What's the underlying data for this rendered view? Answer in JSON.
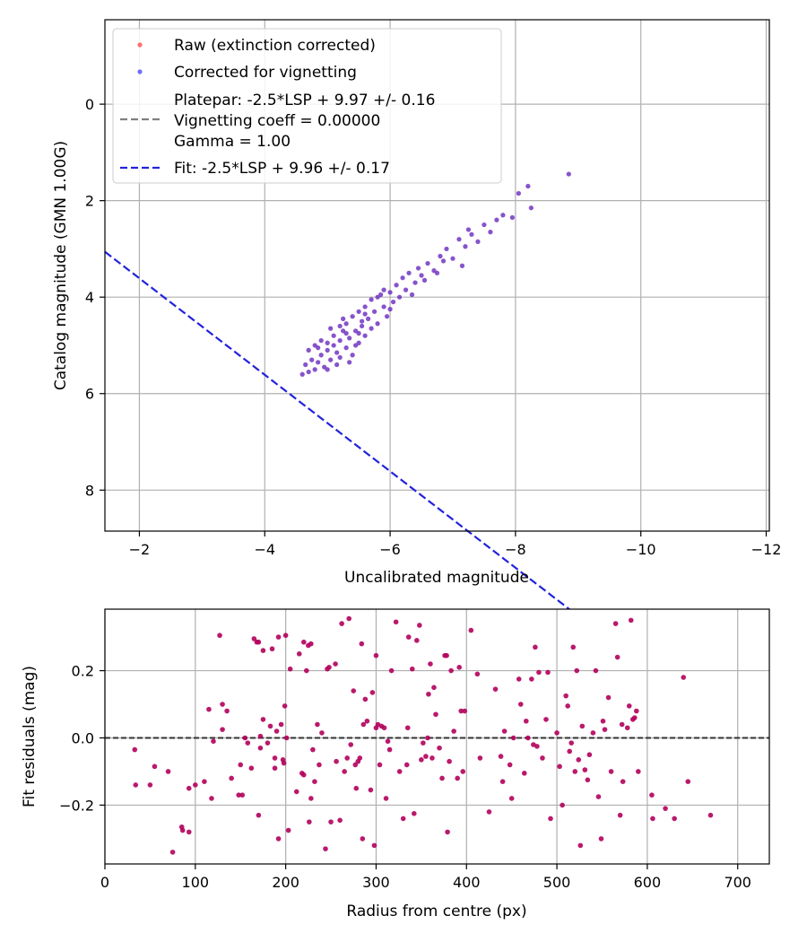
{
  "chart_data": [
    {
      "type": "scatter",
      "title": "",
      "xlabel": "Uncalibrated magnitude",
      "ylabel": "Catalog magnitude (GMN 1.00G)",
      "xlim": [
        -1.45,
        -12.05
      ],
      "ylim": [
        -1.75,
        8.85
      ],
      "xticks": [
        -2,
        -4,
        -6,
        -8,
        -10,
        -12
      ],
      "xtick_labels": [
        "−2",
        "−4",
        "−6",
        "−8",
        "−10",
        "−12"
      ],
      "yticks": [
        0,
        2,
        4,
        6,
        8
      ],
      "ytick_labels": [
        "0",
        "2",
        "4",
        "6",
        "8"
      ],
      "grid": true,
      "legend_position": "top-left",
      "legend": {
        "raw": "Raw (extinction corrected)",
        "corrected": "Corrected for vignetting",
        "platepar_line1": "Platepar: -2.5*LSP + 9.97 +/- 0.16",
        "platepar_line2": "Vignetting coeff = 0.00000",
        "platepar_line3": "Gamma = 1.00",
        "fit": "Fit: -2.5*LSP + 9.96 +/- 0.17"
      },
      "colors": {
        "raw": "#ff3333",
        "corrected": "#3333ff",
        "platepar": "#808080",
        "fit": "#2222dd"
      },
      "fit_line": {
        "slope": -1.0,
        "intercept": 1.61,
        "x_range": [
          -1.45,
          -11.7
        ]
      },
      "platepar_line": {
        "slope": -1.0,
        "intercept": 1.6,
        "visible": false
      },
      "points": [
        [
          -4.6,
          5.6
        ],
        [
          -4.7,
          5.55
        ],
        [
          -4.65,
          5.4
        ],
        [
          -4.8,
          5.5
        ],
        [
          -4.75,
          5.3
        ],
        [
          -4.85,
          5.35
        ],
        [
          -4.7,
          5.1
        ],
        [
          -4.8,
          5.0
        ],
        [
          -4.9,
          5.2
        ],
        [
          -4.95,
          5.45
        ],
        [
          -5.0,
          5.1
        ],
        [
          -5.0,
          4.95
        ],
        [
          -5.05,
          5.3
        ],
        [
          -5.1,
          5.0
        ],
        [
          -5.1,
          4.8
        ],
        [
          -5.15,
          5.15
        ],
        [
          -5.2,
          4.9
        ],
        [
          -5.2,
          5.25
        ],
        [
          -5.25,
          4.7
        ],
        [
          -5.3,
          5.05
        ],
        [
          -5.3,
          4.55
        ],
        [
          -5.35,
          4.85
        ],
        [
          -5.4,
          5.2
        ],
        [
          -5.4,
          4.4
        ],
        [
          -5.45,
          4.7
        ],
        [
          -5.5,
          4.95
        ],
        [
          -5.5,
          4.3
        ],
        [
          -5.55,
          4.6
        ],
        [
          -5.6,
          4.8
        ],
        [
          -5.6,
          4.2
        ],
        [
          -5.65,
          4.45
        ],
        [
          -5.7,
          4.05
        ],
        [
          -5.75,
          4.3
        ],
        [
          -5.8,
          4.55
        ],
        [
          -5.85,
          3.95
        ],
        [
          -5.9,
          4.2
        ],
        [
          -5.95,
          4.4
        ],
        [
          -6.0,
          3.9
        ],
        [
          -6.05,
          4.1
        ],
        [
          -6.1,
          3.75
        ],
        [
          -6.15,
          4.0
        ],
        [
          -6.2,
          3.6
        ],
        [
          -6.25,
          3.85
        ],
        [
          -6.3,
          3.5
        ],
        [
          -6.4,
          3.7
        ],
        [
          -6.45,
          3.4
        ],
        [
          -6.5,
          3.55
        ],
        [
          -6.6,
          3.3
        ],
        [
          -6.7,
          3.45
        ],
        [
          -6.8,
          3.15
        ],
        [
          -6.9,
          3.0
        ],
        [
          -7.0,
          3.2
        ],
        [
          -7.1,
          2.8
        ],
        [
          -7.2,
          2.95
        ],
        [
          -7.3,
          2.7
        ],
        [
          -7.4,
          2.85
        ],
        [
          -7.5,
          2.5
        ],
        [
          -7.6,
          2.65
        ],
        [
          -7.7,
          2.4
        ],
        [
          -7.8,
          2.3
        ],
        [
          -7.95,
          2.35
        ],
        [
          -8.05,
          1.85
        ],
        [
          -8.2,
          1.7
        ],
        [
          -8.25,
          2.15
        ],
        [
          -8.85,
          1.45
        ],
        [
          -5.0,
          5.5
        ],
        [
          -5.15,
          5.4
        ],
        [
          -5.3,
          4.75
        ],
        [
          -5.45,
          5.0
        ],
        [
          -5.55,
          4.5
        ],
        [
          -5.7,
          4.65
        ],
        [
          -5.8,
          4.0
        ],
        [
          -5.25,
          4.45
        ],
        [
          -5.05,
          4.65
        ],
        [
          -4.9,
          4.9
        ],
        [
          -5.35,
          5.35
        ],
        [
          -5.6,
          4.35
        ],
        [
          -6.35,
          3.95
        ],
        [
          -6.55,
          3.65
        ],
        [
          -7.15,
          3.35
        ],
        [
          -7.25,
          2.6
        ],
        [
          -6.85,
          3.25
        ],
        [
          -5.9,
          3.85
        ],
        [
          -4.85,
          5.05
        ],
        [
          -5.2,
          4.6
        ],
        [
          -5.5,
          4.75
        ],
        [
          -6.0,
          4.25
        ],
        [
          -6.75,
          3.5
        ]
      ]
    },
    {
      "type": "scatter",
      "title": "",
      "xlabel": "Radius from centre (px)",
      "ylabel": "Fit residuals (mag)",
      "xlim": [
        0,
        735
      ],
      "ylim": [
        -0.375,
        0.383
      ],
      "xticks": [
        0,
        100,
        200,
        300,
        400,
        500,
        600,
        700
      ],
      "xtick_labels": [
        "0",
        "100",
        "200",
        "300",
        "400",
        "500",
        "600",
        "700"
      ],
      "yticks": [
        -0.2,
        0.0,
        0.2
      ],
      "ytick_labels": [
        "−0.2",
        "0.0",
        "0.2"
      ],
      "grid": true,
      "reference_line": 0.0,
      "colors": {
        "points": "#b3005c",
        "reference": "#333333"
      },
      "points": [
        [
          33,
          -0.035
        ],
        [
          34,
          -0.14
        ],
        [
          50,
          -0.14
        ],
        [
          55,
          -0.085
        ],
        [
          70,
          -0.1
        ],
        [
          75,
          -0.34
        ],
        [
          85,
          -0.265
        ],
        [
          86,
          -0.275
        ],
        [
          93,
          -0.28
        ],
        [
          93,
          -0.15
        ],
        [
          100,
          -0.14
        ],
        [
          110,
          -0.13
        ],
        [
          115,
          0.085
        ],
        [
          118,
          -0.18
        ],
        [
          120,
          -0.01
        ],
        [
          127,
          0.305
        ],
        [
          130,
          0.1
        ],
        [
          130,
          0.025
        ],
        [
          135,
          0.08
        ],
        [
          140,
          -0.12
        ],
        [
          148,
          -0.17
        ],
        [
          150,
          -0.08
        ],
        [
          152,
          -0.17
        ],
        [
          155,
          0.0
        ],
        [
          158,
          -0.015
        ],
        [
          162,
          -0.09
        ],
        [
          165,
          0.295
        ],
        [
          168,
          0.285
        ],
        [
          170,
          0.285
        ],
        [
          170,
          -0.23
        ],
        [
          172,
          -0.03
        ],
        [
          172,
          0.005
        ],
        [
          175,
          0.26
        ],
        [
          175,
          0.055
        ],
        [
          180,
          -0.015
        ],
        [
          183,
          0.035
        ],
        [
          185,
          0.265
        ],
        [
          188,
          -0.06
        ],
        [
          188,
          -0.09
        ],
        [
          190,
          0.02
        ],
        [
          192,
          0.3
        ],
        [
          192,
          -0.3
        ],
        [
          195,
          0.04
        ],
        [
          197,
          -0.065
        ],
        [
          198,
          -0.075
        ],
        [
          199,
          0.095
        ],
        [
          200,
          0.305
        ],
        [
          201,
          -0.0
        ],
        [
          203,
          -0.275
        ],
        [
          205,
          0.205
        ],
        [
          212,
          -0.16
        ],
        [
          215,
          0.25
        ],
        [
          218,
          -0.105
        ],
        [
          220,
          -0.11
        ],
        [
          220,
          0.285
        ],
        [
          223,
          0.2
        ],
        [
          225,
          0.275
        ],
        [
          226,
          -0.25
        ],
        [
          228,
          -0.18
        ],
        [
          228,
          0.28
        ],
        [
          230,
          -0.035
        ],
        [
          232,
          -0.13
        ],
        [
          235,
          0.04
        ],
        [
          237,
          -0.08
        ],
        [
          240,
          0.015
        ],
        [
          244,
          -0.33
        ],
        [
          246,
          0.205
        ],
        [
          248,
          0.21
        ],
        [
          250,
          -0.25
        ],
        [
          255,
          0.22
        ],
        [
          256,
          -0.07
        ],
        [
          260,
          -0.245
        ],
        [
          262,
          0.34
        ],
        [
          265,
          -0.1
        ],
        [
          268,
          -0.06
        ],
        [
          270,
          0.355
        ],
        [
          272,
          -0.02
        ],
        [
          275,
          0.14
        ],
        [
          277,
          -0.08
        ],
        [
          278,
          -0.15
        ],
        [
          280,
          -0.07
        ],
        [
          282,
          -0.06
        ],
        [
          284,
          0.28
        ],
        [
          285,
          -0.3
        ],
        [
          286,
          0.04
        ],
        [
          288,
          0.115
        ],
        [
          290,
          0.05
        ],
        [
          294,
          -0.155
        ],
        [
          296,
          0.135
        ],
        [
          298,
          -0.32
        ],
        [
          300,
          0.245
        ],
        [
          302,
          0.04
        ],
        [
          304,
          -0.08
        ],
        [
          306,
          0.035
        ],
        [
          309,
          0.03
        ],
        [
          311,
          -0.18
        ],
        [
          313,
          -0.01
        ],
        [
          315,
          -0.035
        ],
        [
          317,
          0.2
        ],
        [
          322,
          0.345
        ],
        [
          326,
          -0.1
        ],
        [
          330,
          -0.24
        ],
        [
          334,
          -0.08
        ],
        [
          335,
          0.03
        ],
        [
          336,
          0.3
        ],
        [
          340,
          0.205
        ],
        [
          342,
          -0.225
        ],
        [
          345,
          0.29
        ],
        [
          348,
          0.335
        ],
        [
          350,
          -0.065
        ],
        [
          352,
          -0.015
        ],
        [
          355,
          -0.055
        ],
        [
          357,
          0.0
        ],
        [
          358,
          0.13
        ],
        [
          360,
          0.22
        ],
        [
          362,
          -0.06
        ],
        [
          364,
          0.15
        ],
        [
          366,
          0.07
        ],
        [
          370,
          -0.03
        ],
        [
          373,
          -0.12
        ],
        [
          376,
          0.245
        ],
        [
          378,
          0.245
        ],
        [
          379,
          -0.28
        ],
        [
          381,
          -0.07
        ],
        [
          383,
          0.2
        ],
        [
          386,
          0.02
        ],
        [
          390,
          -0.12
        ],
        [
          392,
          0.21
        ],
        [
          394,
          0.08
        ],
        [
          396,
          -0.1
        ],
        [
          398,
          0.08
        ],
        [
          405,
          0.32
        ],
        [
          412,
          0.19
        ],
        [
          415,
          -0.06
        ],
        [
          425,
          -0.22
        ],
        [
          432,
          0.145
        ],
        [
          438,
          -0.055
        ],
        [
          440,
          -0.13
        ],
        [
          442,
          0.02
        ],
        [
          448,
          -0.08
        ],
        [
          450,
          -0.18
        ],
        [
          452,
          0.0
        ],
        [
          458,
          0.175
        ],
        [
          460,
          0.1
        ],
        [
          464,
          -0.105
        ],
        [
          466,
          0.05
        ],
        [
          468,
          0.0
        ],
        [
          472,
          0.175
        ],
        [
          474,
          -0.02
        ],
        [
          476,
          0.27
        ],
        [
          478,
          -0.025
        ],
        [
          480,
          0.195
        ],
        [
          484,
          -0.06
        ],
        [
          488,
          0.055
        ],
        [
          490,
          0.195
        ],
        [
          493,
          -0.24
        ],
        [
          500,
          0.015
        ],
        [
          503,
          -0.085
        ],
        [
          506,
          -0.2
        ],
        [
          510,
          0.125
        ],
        [
          512,
          0.095
        ],
        [
          514,
          -0.04
        ],
        [
          516,
          -0.015
        ],
        [
          518,
          0.27
        ],
        [
          520,
          -0.1
        ],
        [
          522,
          0.2
        ],
        [
          524,
          -0.065
        ],
        [
          526,
          -0.32
        ],
        [
          528,
          0.035
        ],
        [
          531,
          -0.095
        ],
        [
          534,
          -0.125
        ],
        [
          536,
          -0.05
        ],
        [
          540,
          0.015
        ],
        [
          543,
          0.2
        ],
        [
          546,
          -0.175
        ],
        [
          549,
          -0.3
        ],
        [
          551,
          0.05
        ],
        [
          553,
          0.025
        ],
        [
          557,
          0.12
        ],
        [
          560,
          -0.1
        ],
        [
          565,
          0.34
        ],
        [
          567,
          0.24
        ],
        [
          570,
          -0.23
        ],
        [
          572,
          0.04
        ],
        [
          573,
          -0.13
        ],
        [
          578,
          0.03
        ],
        [
          580,
          0.095
        ],
        [
          582,
          0.35
        ],
        [
          584,
          0.055
        ],
        [
          586,
          0.06
        ],
        [
          588,
          0.08
        ],
        [
          590,
          -0.1
        ],
        [
          605,
          -0.17
        ],
        [
          606,
          -0.24
        ],
        [
          620,
          -0.21
        ],
        [
          630,
          -0.24
        ],
        [
          640,
          0.18
        ],
        [
          645,
          -0.13
        ],
        [
          670,
          -0.23
        ],
        [
          300,
          0.03
        ]
      ]
    }
  ]
}
